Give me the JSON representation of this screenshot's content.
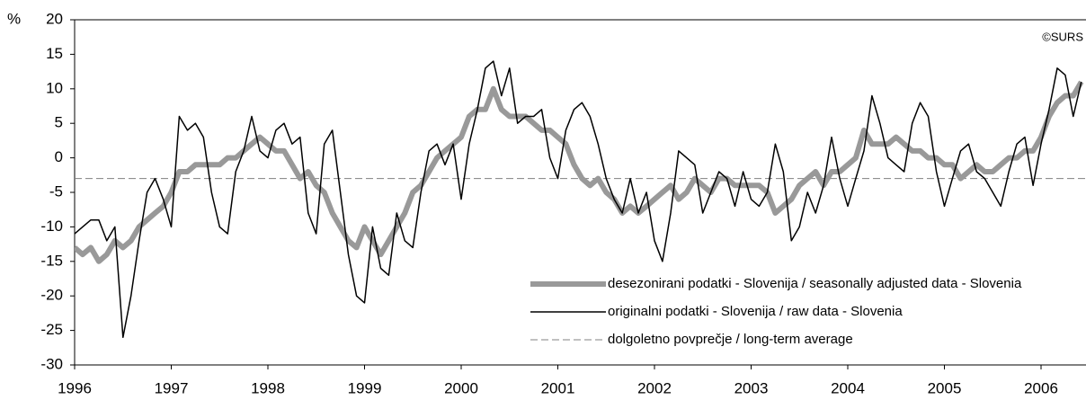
{
  "chart_data": {
    "type": "line",
    "y_unit": "%",
    "source": "©SURS",
    "xlim": [
      1996,
      2006.47
    ],
    "xticks": [
      1996,
      1997,
      1998,
      1999,
      2000,
      2001,
      2002,
      2003,
      2004,
      2005,
      2006
    ],
    "ylim": [
      -30,
      20
    ],
    "yticks": [
      -30,
      -25,
      -20,
      -15,
      -10,
      -5,
      0,
      5,
      10,
      15,
      20
    ],
    "legend": "lower right",
    "x": [
      1996,
      1996.083,
      1996.167,
      1996.25,
      1996.333,
      1996.417,
      1996.5,
      1996.583,
      1996.667,
      1996.75,
      1996.833,
      1996.917,
      1997,
      1997.083,
      1997.167,
      1997.25,
      1997.333,
      1997.417,
      1997.5,
      1997.583,
      1997.667,
      1997.75,
      1997.833,
      1997.917,
      1998,
      1998.083,
      1998.167,
      1998.25,
      1998.333,
      1998.417,
      1998.5,
      1998.583,
      1998.667,
      1998.75,
      1998.833,
      1998.917,
      1999,
      1999.083,
      1999.167,
      1999.25,
      1999.333,
      1999.417,
      1999.5,
      1999.583,
      1999.667,
      1999.75,
      1999.833,
      1999.917,
      2000,
      2000.083,
      2000.167,
      2000.25,
      2000.333,
      2000.417,
      2000.5,
      2000.583,
      2000.667,
      2000.75,
      2000.833,
      2000.917,
      2001,
      2001.083,
      2001.167,
      2001.25,
      2001.333,
      2001.417,
      2001.5,
      2001.583,
      2001.667,
      2001.75,
      2001.833,
      2001.917,
      2002,
      2002.083,
      2002.167,
      2002.25,
      2002.333,
      2002.417,
      2002.5,
      2002.583,
      2002.667,
      2002.75,
      2002.833,
      2002.917,
      2003,
      2003.083,
      2003.167,
      2003.25,
      2003.333,
      2003.417,
      2003.5,
      2003.583,
      2003.667,
      2003.75,
      2003.833,
      2003.917,
      2004,
      2004.083,
      2004.167,
      2004.25,
      2004.333,
      2004.417,
      2004.5,
      2004.583,
      2004.667,
      2004.75,
      2004.833,
      2004.917,
      2005,
      2005.083,
      2005.167,
      2005.25,
      2005.333,
      2005.417,
      2005.5,
      2005.583,
      2005.667,
      2005.75,
      2005.833,
      2005.917,
      2006,
      2006.083,
      2006.167,
      2006.25,
      2006.333,
      2006.417
    ],
    "series": [
      {
        "name": "desezonirani podatki - Slovenija / seasonally adjusted data - Slovenia",
        "color": "#999999",
        "width": 6,
        "values": [
          -13,
          -14,
          -13,
          -15,
          -14,
          -12,
          -13,
          -12,
          -10,
          -9,
          -8,
          -7,
          -5,
          -2,
          -2,
          -1,
          -1,
          -1,
          -1,
          0,
          0,
          1,
          2,
          3,
          2,
          1,
          1,
          -1,
          -3,
          -2,
          -4,
          -5,
          -8,
          -10,
          -12,
          -13,
          -10,
          -12,
          -14,
          -12,
          -10,
          -8,
          -5,
          -4,
          -2,
          0,
          1,
          2,
          3,
          6,
          7,
          7,
          10,
          7,
          6,
          6,
          6,
          5,
          4,
          4,
          3,
          2,
          -1,
          -3,
          -4,
          -3,
          -5,
          -6,
          -8,
          -7,
          -8,
          -7,
          -6,
          -5,
          -4,
          -6,
          -5,
          -3,
          -4,
          -5,
          -3,
          -3,
          -4,
          -4,
          -4,
          -4,
          -5,
          -8,
          -7,
          -6,
          -4,
          -3,
          -2,
          -4,
          -2,
          -2,
          -1,
          0,
          4,
          2,
          2,
          2,
          3,
          2,
          1,
          1,
          0,
          0,
          -1,
          -1,
          -3,
          -2,
          -1,
          -2,
          -2,
          -1,
          0,
          0,
          1,
          1,
          3,
          6,
          8,
          9,
          9,
          11
        ]
      },
      {
        "name": "originalni podatki - Slovenija / raw data - Slovenia",
        "color": "#000000",
        "width": 1.5,
        "values": [
          -11,
          -10,
          -9,
          -9,
          -12,
          -10,
          -26,
          -20,
          -12,
          -5,
          -3,
          -6,
          -10,
          6,
          4,
          5,
          3,
          -5,
          -10,
          -11,
          -2,
          1,
          6,
          1,
          0,
          4,
          5,
          2,
          3,
          -8,
          -11,
          2,
          4,
          -5,
          -14,
          -20,
          -21,
          -10,
          -16,
          -17,
          -8,
          -12,
          -13,
          -5,
          1,
          2,
          -1,
          2,
          -6,
          2,
          7,
          13,
          14,
          9,
          13,
          5,
          6,
          6,
          7,
          0,
          -3,
          4,
          7,
          8,
          6,
          2,
          -3,
          -6,
          -8,
          -3,
          -8,
          -5,
          -12,
          -15,
          -8,
          1,
          0,
          -1,
          -8,
          -5,
          -2,
          -3,
          -7,
          -2,
          -6,
          -7,
          -5,
          2,
          -2,
          -12,
          -10,
          -5,
          -8,
          -4,
          3,
          -3,
          -7,
          -3,
          1,
          9,
          5,
          0,
          -1,
          -2,
          5,
          8,
          6,
          -2,
          -7,
          -3,
          1,
          2,
          -2,
          -3,
          -5,
          -7,
          -2,
          2,
          3,
          -4,
          2,
          7,
          13,
          12,
          6,
          11
        ]
      }
    ],
    "hlines": [
      {
        "name": "dolgoletno povprečje / long-term average",
        "value": -3,
        "color": "#808080"
      }
    ]
  }
}
